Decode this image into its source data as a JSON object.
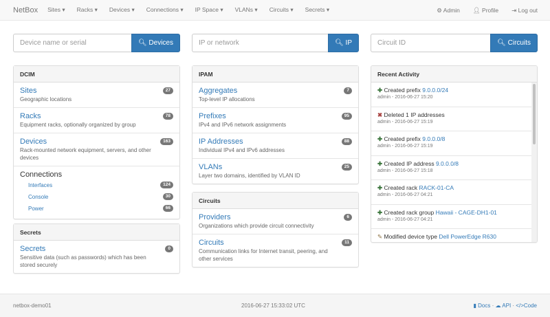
{
  "nav": {
    "brand": "NetBox",
    "menus": [
      "Sites ▾",
      "Racks ▾",
      "Devices ▾",
      "Connections ▾",
      "IP Space ▾",
      "VLANs ▾",
      "Circuits ▾",
      "Secrets ▾"
    ],
    "admin": "Admin",
    "profile": "Profile",
    "logout": "Log out"
  },
  "search": {
    "devices": {
      "placeholder": "Device name or serial",
      "button": "Devices"
    },
    "ip": {
      "placeholder": "IP or network",
      "button": "IP"
    },
    "circuits": {
      "placeholder": "Circuit ID",
      "button": "Circuits"
    }
  },
  "dcim": {
    "title": "DCIM",
    "items": [
      {
        "label": "Sites",
        "desc": "Geographic locations",
        "count": "27"
      },
      {
        "label": "Racks",
        "desc": "Equipment racks, optionally organized by group",
        "count": "78"
      },
      {
        "label": "Devices",
        "desc": "Rack-mounted network equipment, servers, and other devices",
        "count": "163"
      }
    ],
    "connections": {
      "label": "Connections",
      "items": [
        {
          "label": "Interfaces",
          "count": "124"
        },
        {
          "label": "Console",
          "count": "30"
        },
        {
          "label": "Power",
          "count": "66"
        }
      ]
    }
  },
  "secrets": {
    "title": "Secrets",
    "items": [
      {
        "label": "Secrets",
        "desc": "Sensitive data (such as passwords) which has been stored securely",
        "count": "0"
      }
    ]
  },
  "ipam": {
    "title": "IPAM",
    "items": [
      {
        "label": "Aggregates",
        "desc": "Top-level IP allocations",
        "count": "7"
      },
      {
        "label": "Prefixes",
        "desc": "IPv4 and IPv6 network assignments",
        "count": "95"
      },
      {
        "label": "IP Addresses",
        "desc": "Individual IPv4 and IPv6 addresses",
        "count": "88"
      },
      {
        "label": "VLANs",
        "desc": "Layer two domains, identified by VLAN ID",
        "count": "25"
      }
    ]
  },
  "circuits": {
    "title": "Circuits",
    "items": [
      {
        "label": "Providers",
        "desc": "Organizations which provide circuit connectivity",
        "count": "6"
      },
      {
        "label": "Circuits",
        "desc": "Communication links for Internet transit, peering, and other services",
        "count": "11"
      }
    ]
  },
  "activity": {
    "title": "Recent Activity",
    "items": [
      {
        "icon": "plus",
        "text": "Created prefix",
        "link": "9.0.0.0/24",
        "meta": "admin - 2016-06-27 15:20"
      },
      {
        "icon": "remove",
        "text": "Deleted 1 IP addresses",
        "link": "",
        "meta": "admin - 2016-06-27 15:19"
      },
      {
        "icon": "plus",
        "text": "Created prefix",
        "link": "9.0.0.0/8",
        "meta": "admin - 2016-06-27 15:19"
      },
      {
        "icon": "plus",
        "text": "Created IP address",
        "link": "9.0.0.0/8",
        "meta": "admin - 2016-06-27 15:18"
      },
      {
        "icon": "plus",
        "text": "Created rack",
        "link": "RACK-01-CA",
        "meta": "admin - 2016-06-27 04:21"
      },
      {
        "icon": "plus",
        "text": "Created rack group",
        "link": "Hawaii - CAGE-DH1-01",
        "meta": "admin - 2016-06-27 04:21"
      },
      {
        "icon": "pencil",
        "text": "Modified device type",
        "link": "Dell PowerEdge R630",
        "meta": ""
      }
    ]
  },
  "footer": {
    "host": "netbox-demo01",
    "time": "2016-06-27 15:33:02 UTC",
    "docs": "Docs",
    "api": "API",
    "code": "Code"
  },
  "colors": {
    "primary": "#337ab7",
    "badge": "#777777",
    "created": "#3c763d",
    "deleted": "#a94442"
  }
}
